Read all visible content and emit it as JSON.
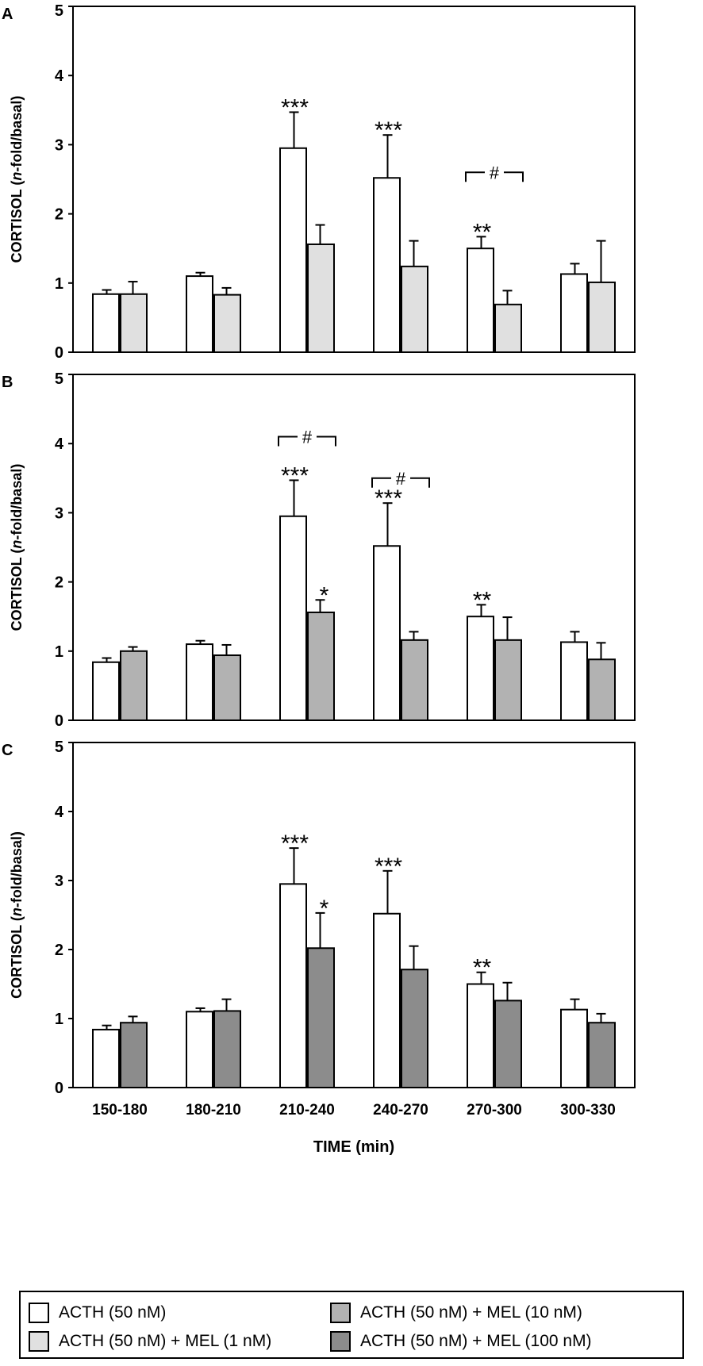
{
  "chart_data": [
    {
      "type": "bar",
      "panel_label": "A",
      "ylabel_prefix": "CORTISOL (",
      "ylabel_italic": "n",
      "ylabel_suffix": "-fold/basal)",
      "ylim": [
        0,
        5
      ],
      "yticks": [
        "0",
        "1",
        "2",
        "3",
        "4",
        "5"
      ],
      "categories": [
        "150-180",
        "180-210",
        "210-240",
        "240-270",
        "270-300",
        "300-330"
      ],
      "series": [
        {
          "name": "ACTH (50 nM)",
          "values": [
            0.84,
            1.1,
            2.95,
            2.52,
            1.5,
            1.13
          ],
          "errors": [
            0.06,
            0.05,
            0.52,
            0.62,
            0.17,
            0.15
          ],
          "sig": [
            "",
            "",
            "***",
            "***",
            "**",
            ""
          ],
          "color": "#ffffff"
        },
        {
          "name": "ACTH (50 nM) + MEL (1 nM)",
          "values": [
            0.84,
            0.83,
            1.56,
            1.24,
            0.69,
            1.01
          ],
          "errors": [
            0.18,
            0.1,
            0.28,
            0.37,
            0.2,
            0.6
          ],
          "sig": [
            "",
            "",
            "",
            "",
            "",
            ""
          ],
          "color": "#e0e0e0"
        }
      ],
      "brackets": [
        {
          "category": 4,
          "label": "#",
          "level": 2.6
        }
      ]
    },
    {
      "type": "bar",
      "panel_label": "B",
      "ylabel_prefix": "CORTISOL (",
      "ylabel_italic": "n",
      "ylabel_suffix": "-fold/basal)",
      "ylim": [
        0,
        5
      ],
      "yticks": [
        "0",
        "1",
        "2",
        "3",
        "4",
        "5"
      ],
      "categories": [
        "150-180",
        "180-210",
        "210-240",
        "240-270",
        "270-300",
        "300-330"
      ],
      "series": [
        {
          "name": "ACTH (50 nM)",
          "values": [
            0.84,
            1.1,
            2.95,
            2.52,
            1.5,
            1.13
          ],
          "errors": [
            0.06,
            0.05,
            0.52,
            0.62,
            0.17,
            0.15
          ],
          "sig": [
            "",
            "",
            "***",
            "***",
            "**",
            ""
          ],
          "color": "#ffffff"
        },
        {
          "name": "ACTH (50 nM) + MEL (10 nM)",
          "values": [
            1.0,
            0.94,
            1.56,
            1.16,
            1.16,
            0.88
          ],
          "errors": [
            0.06,
            0.15,
            0.18,
            0.12,
            0.33,
            0.24
          ],
          "sig": [
            "",
            "",
            "*",
            "",
            "",
            ""
          ],
          "color": "#b2b2b2"
        }
      ],
      "brackets": [
        {
          "category": 2,
          "label": "#",
          "level": 4.1
        },
        {
          "category": 3,
          "label": "#",
          "level": 3.5
        }
      ]
    },
    {
      "type": "bar",
      "panel_label": "C",
      "ylabel_prefix": "CORTISOL (",
      "ylabel_italic": "n",
      "ylabel_suffix": "-fold/basal)",
      "ylim": [
        0,
        5
      ],
      "yticks": [
        "0",
        "1",
        "2",
        "3",
        "4",
        "5"
      ],
      "xlabel": "TIME (min)",
      "show_xticklabels": true,
      "categories": [
        "150-180",
        "180-210",
        "210-240",
        "240-270",
        "270-300",
        "300-330"
      ],
      "series": [
        {
          "name": "ACTH (50 nM)",
          "values": [
            0.84,
            1.1,
            2.95,
            2.52,
            1.5,
            1.13
          ],
          "errors": [
            0.06,
            0.05,
            0.52,
            0.62,
            0.17,
            0.15
          ],
          "sig": [
            "",
            "",
            "***",
            "***",
            "**",
            ""
          ],
          "color": "#ffffff"
        },
        {
          "name": "ACTH (50 nM) + MEL (100 nM)",
          "values": [
            0.94,
            1.11,
            2.02,
            1.71,
            1.26,
            0.94
          ],
          "errors": [
            0.09,
            0.17,
            0.51,
            0.34,
            0.26,
            0.13
          ],
          "sig": [
            "",
            "",
            "*",
            "",
            "",
            ""
          ],
          "color": "#8c8c8c"
        }
      ],
      "brackets": []
    }
  ],
  "legend": {
    "items": [
      {
        "label": "ACTH (50 nM)",
        "color": "#ffffff"
      },
      {
        "label": "ACTH (50 nM) + MEL (10 nM)",
        "color": "#b2b2b2"
      },
      {
        "label": "ACTH (50 nM) + MEL (1 nM)",
        "color": "#e0e0e0"
      },
      {
        "label": "ACTH (50 nM) + MEL (100 nM)",
        "color": "#8c8c8c"
      }
    ]
  }
}
